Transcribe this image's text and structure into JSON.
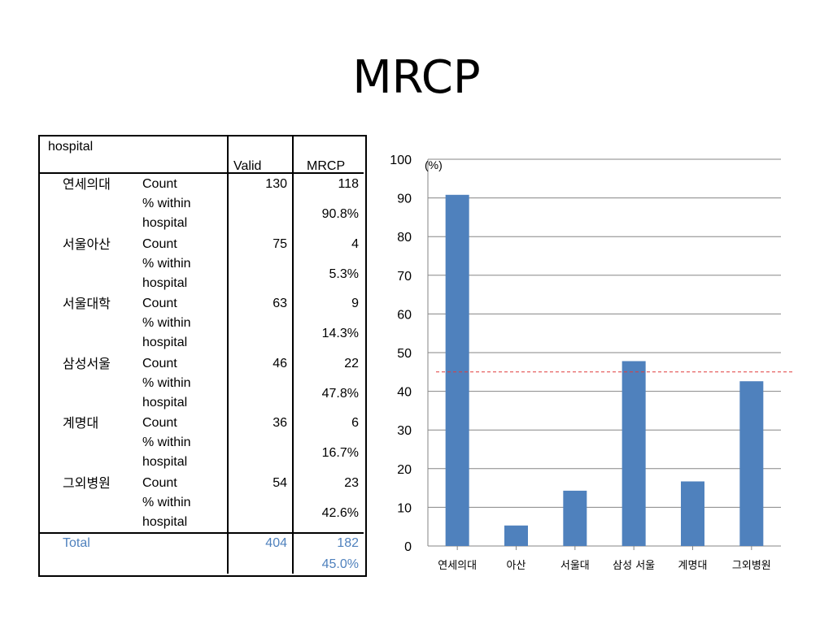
{
  "title": "MRCP",
  "table": {
    "header": {
      "group": "hospital",
      "valid": "Valid",
      "mrcp": "MRCP"
    },
    "rows": [
      {
        "hospital": "연세의대",
        "count_label": "Count",
        "pct_label_1": "% within",
        "pct_label_2": "hospital",
        "valid": "130",
        "mrcp": "118",
        "pct": "90.8%"
      },
      {
        "hospital": "서울아산",
        "count_label": "Count",
        "pct_label_1": "% within",
        "pct_label_2": "hospital",
        "valid": "75",
        "mrcp": "4",
        "pct": "5.3%"
      },
      {
        "hospital": "서울대학",
        "count_label": "Count",
        "pct_label_1": "% within",
        "pct_label_2": "hospital",
        "valid": "63",
        "mrcp": "9",
        "pct": "14.3%"
      },
      {
        "hospital": "삼성서울",
        "count_label": "Count",
        "pct_label_1": "% within",
        "pct_label_2": "hospital",
        "valid": "46",
        "mrcp": "22",
        "pct": "47.8%"
      },
      {
        "hospital": "계명대",
        "count_label": "Count",
        "pct_label_1": "% within",
        "pct_label_2": "hospital",
        "valid": "36",
        "mrcp": "6",
        "pct": "16.7%"
      },
      {
        "hospital": "그외병원",
        "count_label": "Count",
        "pct_label_1": "% within",
        "pct_label_2": "hospital",
        "valid": "54",
        "mrcp": "23",
        "pct": "42.6%"
      }
    ],
    "total": {
      "label": "Total",
      "valid": "404",
      "mrcp": "182",
      "pct": "45.0%"
    }
  },
  "colors": {
    "bar": "#4f81bd",
    "reference_line": "#e03c3c",
    "grid": "#868686",
    "total_text": "#4f81bd"
  },
  "chart_data": {
    "type": "bar",
    "categories": [
      "연세의대",
      "아산",
      "서울대",
      "삼성 서울",
      "계명대",
      "그외병원"
    ],
    "values": [
      90.8,
      5.3,
      14.3,
      47.8,
      16.7,
      42.6
    ],
    "unit_label": "(%)",
    "ylim": [
      0,
      100
    ],
    "yticks": [
      0,
      10,
      20,
      30,
      40,
      50,
      60,
      70,
      80,
      90,
      100
    ],
    "reference_line": {
      "value": 45.0,
      "style": "dashed"
    },
    "grid": true,
    "legend": "none"
  }
}
